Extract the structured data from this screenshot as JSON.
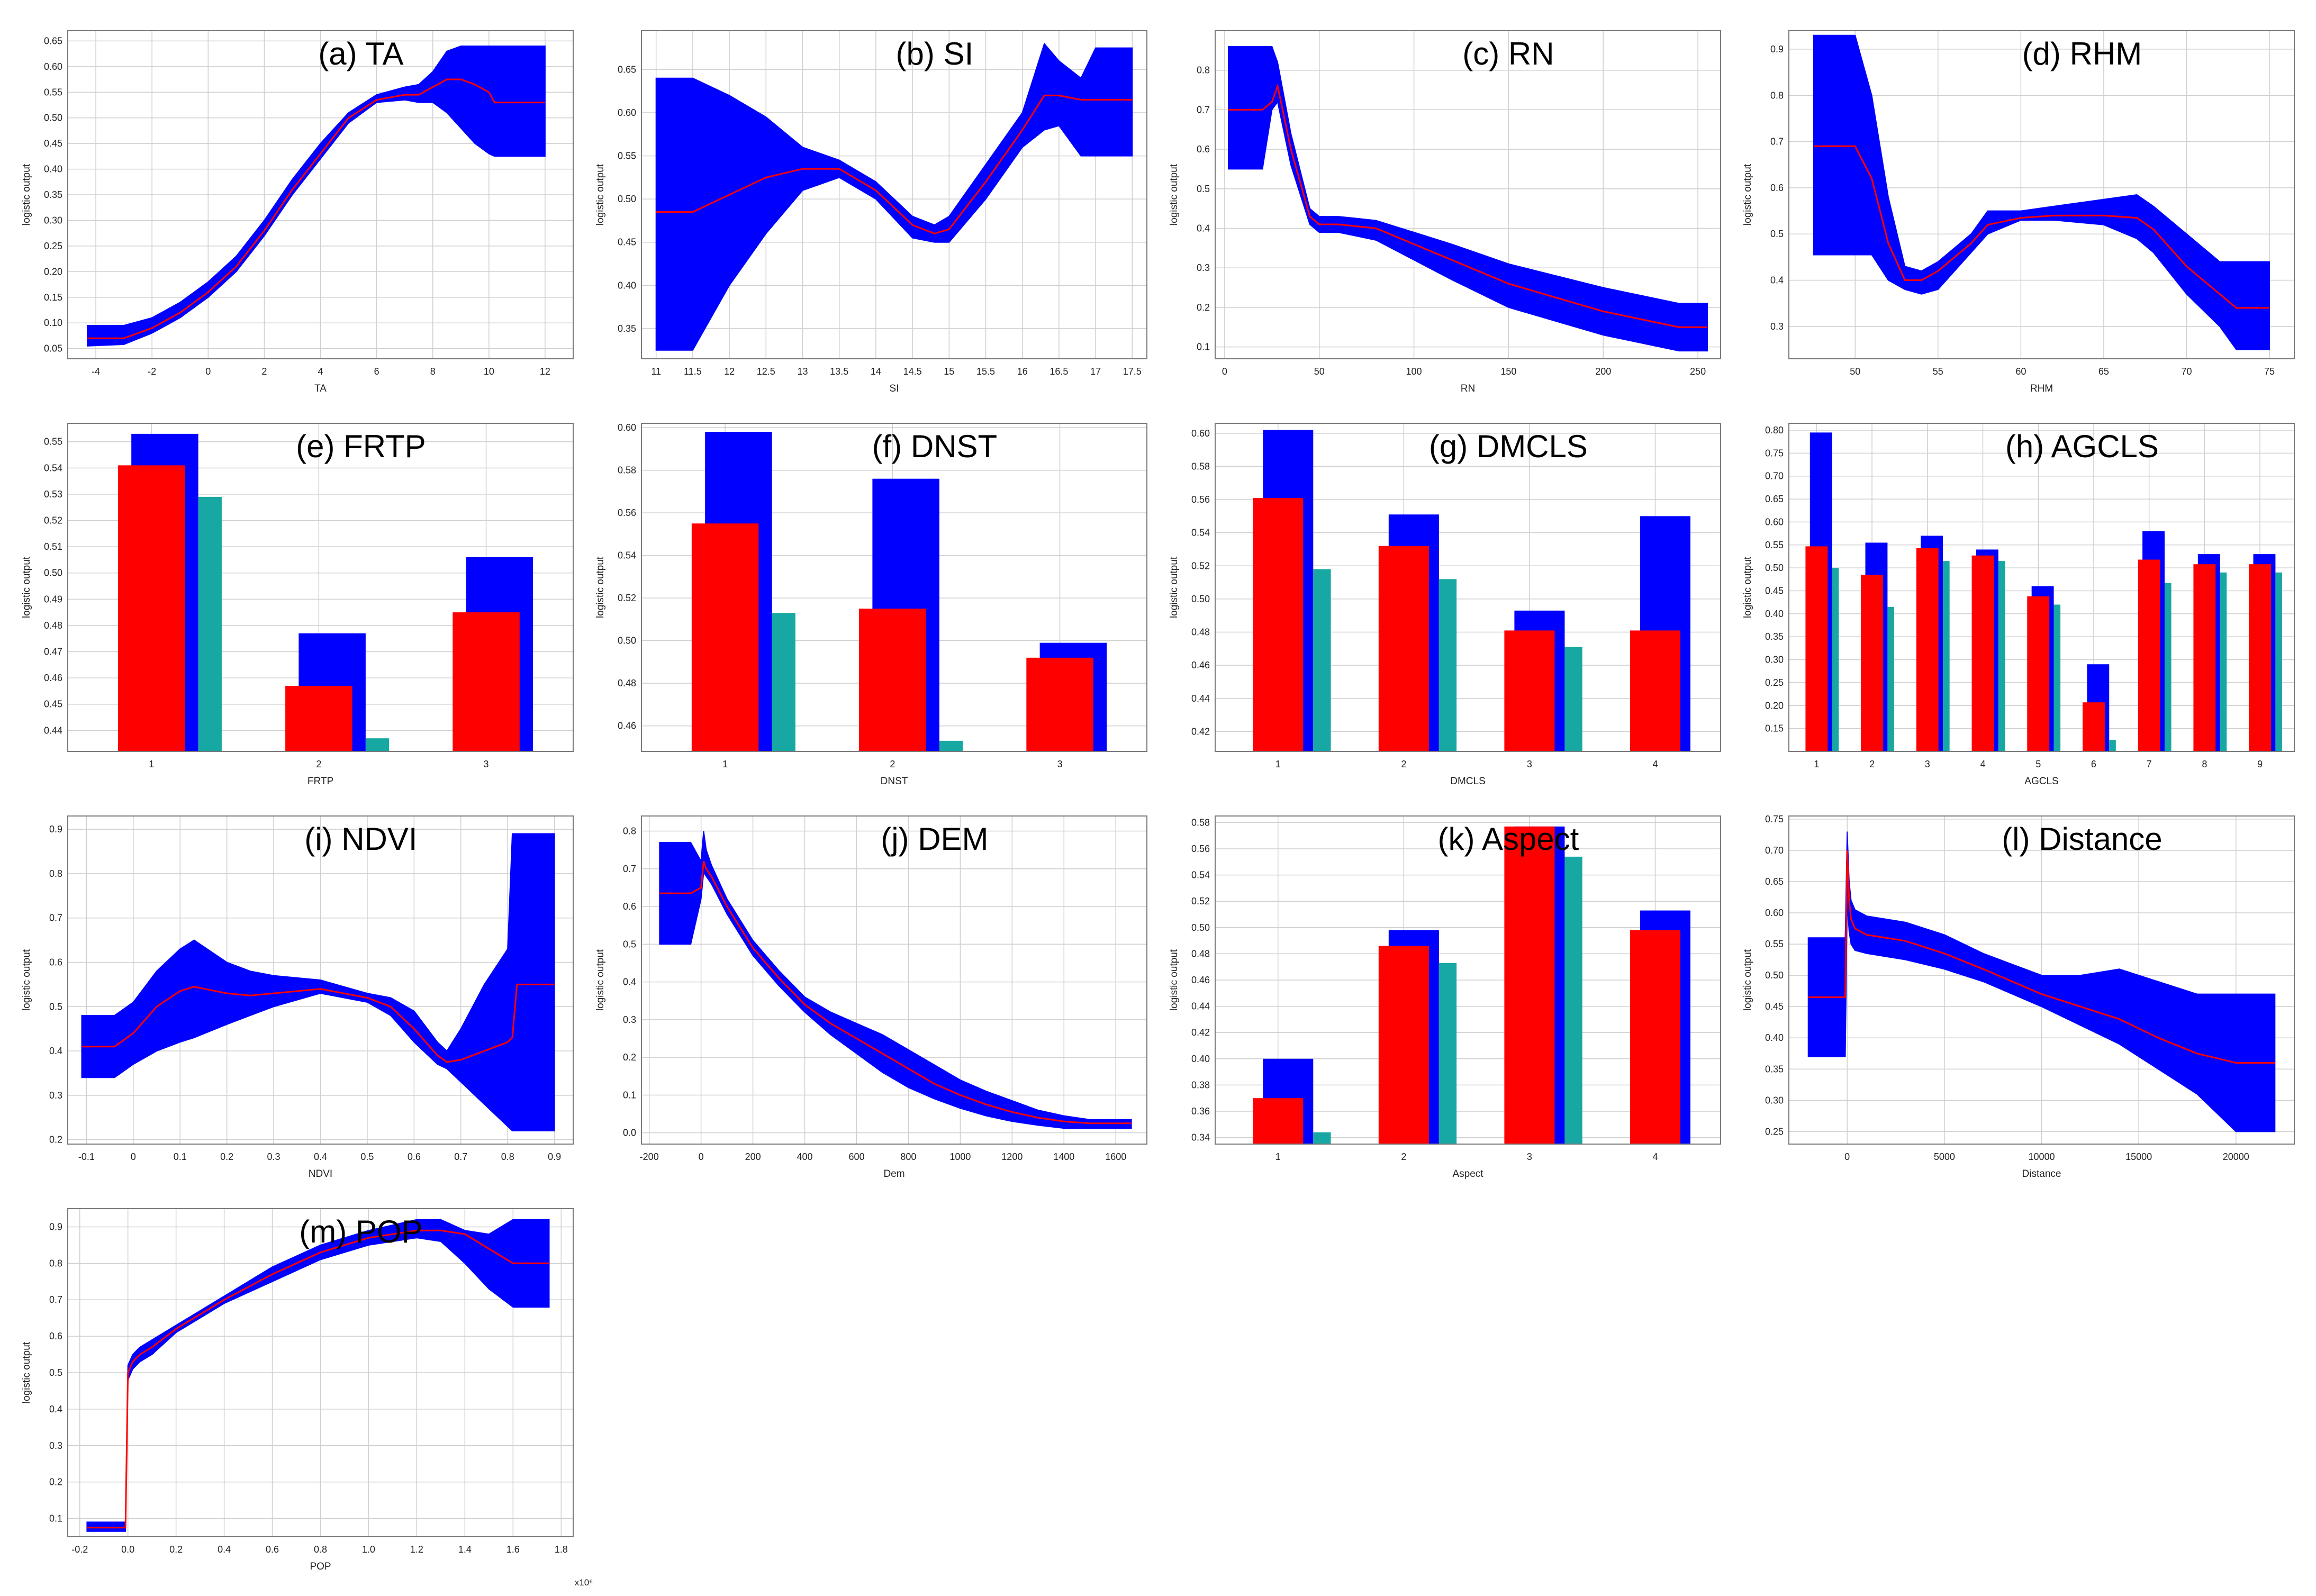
{
  "colors": {
    "ci": "#0000ff",
    "mean": "#ff0000",
    "teal": "#17a8a4",
    "grid": "#cfcfcf",
    "frame": "#7a7a7a"
  },
  "chart_data": [
    {
      "id": "a",
      "type": "line",
      "title": "(a) TA",
      "xlabel": "TA",
      "ylabel": "logistic output",
      "xlim": [
        -5,
        13
      ],
      "ylim": [
        0.03,
        0.67
      ],
      "xticks": [
        -4,
        -2,
        0,
        2,
        4,
        6,
        8,
        10,
        12
      ],
      "yticks": [
        0.05,
        0.1,
        0.15,
        0.2,
        0.25,
        0.3,
        0.35,
        0.4,
        0.45,
        0.5,
        0.55,
        0.6,
        0.65
      ],
      "x": [
        -4.3,
        -3,
        -2,
        -1,
        0,
        1,
        2,
        3,
        4,
        5,
        6,
        7,
        7.5,
        8,
        8.5,
        9,
        9.5,
        10,
        10.2,
        11,
        12
      ],
      "mean": [
        0.07,
        0.07,
        0.09,
        0.12,
        0.16,
        0.21,
        0.28,
        0.36,
        0.43,
        0.5,
        0.535,
        0.545,
        0.545,
        0.56,
        0.575,
        0.575,
        0.565,
        0.55,
        0.53,
        0.53,
        0.53
      ],
      "lower": [
        0.055,
        0.058,
        0.08,
        0.11,
        0.15,
        0.2,
        0.27,
        0.35,
        0.42,
        0.49,
        0.53,
        0.535,
        0.53,
        0.53,
        0.51,
        0.48,
        0.45,
        0.43,
        0.425,
        0.425,
        0.425
      ],
      "upper": [
        0.095,
        0.095,
        0.11,
        0.14,
        0.18,
        0.23,
        0.3,
        0.38,
        0.45,
        0.51,
        0.545,
        0.56,
        0.565,
        0.59,
        0.63,
        0.64,
        0.64,
        0.64,
        0.64,
        0.64,
        0.64
      ]
    },
    {
      "id": "b",
      "type": "line",
      "title": "(b) SI",
      "xlabel": "SI",
      "ylabel": "logistic output",
      "xlim": [
        10.8,
        17.7
      ],
      "ylim": [
        0.315,
        0.695
      ],
      "xticks": [
        11.0,
        11.5,
        12.0,
        12.5,
        13.0,
        13.5,
        14.0,
        14.5,
        15.0,
        15.5,
        16.0,
        16.5,
        17.0,
        17.5
      ],
      "yticks": [
        0.35,
        0.4,
        0.45,
        0.5,
        0.55,
        0.6,
        0.65
      ],
      "x": [
        11.0,
        11.5,
        12.0,
        12.5,
        13.0,
        13.5,
        14.0,
        14.5,
        14.8,
        15.0,
        15.5,
        16.0,
        16.3,
        16.5,
        16.8,
        17.0,
        17.5
      ],
      "mean": [
        0.485,
        0.485,
        0.505,
        0.525,
        0.535,
        0.535,
        0.51,
        0.47,
        0.46,
        0.465,
        0.52,
        0.58,
        0.62,
        0.62,
        0.615,
        0.615,
        0.615
      ],
      "lower": [
        0.325,
        0.325,
        0.4,
        0.46,
        0.51,
        0.525,
        0.5,
        0.455,
        0.45,
        0.45,
        0.5,
        0.56,
        0.58,
        0.585,
        0.55,
        0.55,
        0.55
      ],
      "upper": [
        0.64,
        0.64,
        0.62,
        0.595,
        0.56,
        0.545,
        0.52,
        0.48,
        0.47,
        0.48,
        0.54,
        0.6,
        0.68,
        0.66,
        0.64,
        0.675,
        0.675
      ]
    },
    {
      "id": "c",
      "type": "line",
      "title": "(c) RN",
      "xlabel": "RN",
      "ylabel": "logistic output",
      "xlim": [
        -5,
        262
      ],
      "ylim": [
        0.07,
        0.9
      ],
      "xticks": [
        0,
        50,
        100,
        150,
        200,
        250
      ],
      "yticks": [
        0.1,
        0.2,
        0.3,
        0.4,
        0.5,
        0.6,
        0.7,
        0.8
      ],
      "x": [
        2,
        10,
        20,
        25,
        28,
        35,
        45,
        50,
        60,
        70,
        80,
        100,
        120,
        150,
        200,
        240,
        255
      ],
      "mean": [
        0.7,
        0.7,
        0.7,
        0.72,
        0.76,
        0.6,
        0.43,
        0.41,
        0.41,
        0.405,
        0.4,
        0.36,
        0.32,
        0.26,
        0.19,
        0.15,
        0.15
      ],
      "lower": [
        0.55,
        0.55,
        0.55,
        0.7,
        0.72,
        0.56,
        0.41,
        0.39,
        0.39,
        0.38,
        0.37,
        0.32,
        0.27,
        0.2,
        0.13,
        0.09,
        0.09
      ],
      "upper": [
        0.86,
        0.86,
        0.86,
        0.86,
        0.82,
        0.64,
        0.45,
        0.43,
        0.43,
        0.425,
        0.42,
        0.39,
        0.36,
        0.31,
        0.25,
        0.21,
        0.21
      ]
    },
    {
      "id": "d",
      "type": "line",
      "title": "(d) RHM",
      "xlabel": "RHM",
      "ylabel": "logistic output",
      "xlim": [
        46,
        76.5
      ],
      "ylim": [
        0.23,
        0.94
      ],
      "xticks": [
        50,
        55,
        60,
        65,
        70,
        75
      ],
      "yticks": [
        0.3,
        0.4,
        0.5,
        0.6,
        0.7,
        0.8,
        0.9
      ],
      "x": [
        47.5,
        50,
        51,
        52,
        53,
        54,
        55,
        57,
        58,
        60,
        62,
        65,
        67,
        68,
        70,
        72,
        73,
        75
      ],
      "mean": [
        0.69,
        0.69,
        0.62,
        0.48,
        0.4,
        0.4,
        0.42,
        0.48,
        0.52,
        0.535,
        0.54,
        0.54,
        0.535,
        0.51,
        0.43,
        0.37,
        0.34,
        0.34
      ],
      "lower": [
        0.455,
        0.455,
        0.455,
        0.4,
        0.38,
        0.37,
        0.38,
        0.46,
        0.5,
        0.53,
        0.53,
        0.52,
        0.49,
        0.46,
        0.37,
        0.3,
        0.25,
        0.25
      ],
      "upper": [
        0.93,
        0.93,
        0.8,
        0.58,
        0.43,
        0.42,
        0.44,
        0.5,
        0.55,
        0.55,
        0.56,
        0.575,
        0.585,
        0.56,
        0.5,
        0.44,
        0.44,
        0.44
      ]
    },
    {
      "id": "e",
      "type": "bar",
      "title": "(e) FRTP",
      "xlabel": "FRTP",
      "ylabel": "logistic output",
      "categories": [
        "1",
        "2",
        "3"
      ],
      "xlim": [
        0.5,
        3.52
      ],
      "ylim": [
        0.432,
        0.557
      ],
      "yticks": [
        0.44,
        0.45,
        0.46,
        0.47,
        0.48,
        0.49,
        0.5,
        0.51,
        0.52,
        0.53,
        0.54,
        0.55
      ],
      "upper": [
        0.553,
        0.477,
        0.506
      ],
      "mean": [
        0.541,
        0.457,
        0.485
      ],
      "teal": [
        0.529,
        0.437,
        null
      ]
    },
    {
      "id": "f",
      "type": "bar",
      "title": "(f) DNST",
      "xlabel": "DNST",
      "ylabel": "logistic output",
      "categories": [
        "1",
        "2",
        "3"
      ],
      "xlim": [
        0.5,
        3.52
      ],
      "ylim": [
        0.448,
        0.602
      ],
      "yticks": [
        0.46,
        0.48,
        0.5,
        0.52,
        0.54,
        0.56,
        0.58,
        0.6
      ],
      "upper": [
        0.598,
        0.576,
        0.499
      ],
      "mean": [
        0.555,
        0.515,
        0.492
      ],
      "teal": [
        0.513,
        0.453,
        null
      ]
    },
    {
      "id": "g",
      "type": "bar",
      "title": "(g) DMCLS",
      "xlabel": "DMCLS",
      "ylabel": "logistic output",
      "categories": [
        "1",
        "2",
        "3",
        "4"
      ],
      "xlim": [
        0.5,
        4.52
      ],
      "ylim": [
        0.408,
        0.606
      ],
      "yticks": [
        0.42,
        0.44,
        0.46,
        0.48,
        0.5,
        0.52,
        0.54,
        0.56,
        0.58,
        0.6
      ],
      "upper": [
        0.602,
        0.551,
        0.493,
        0.55
      ],
      "mean": [
        0.561,
        0.532,
        0.481,
        0.481
      ],
      "teal": [
        0.518,
        0.512,
        0.471,
        null
      ]
    },
    {
      "id": "h",
      "type": "bar",
      "title": "(h) AGCLS",
      "xlabel": "AGCLS",
      "ylabel": "logistic output",
      "categories": [
        "1",
        "2",
        "3",
        "4",
        "5",
        "6",
        "7",
        "8",
        "9"
      ],
      "xlim": [
        0.5,
        9.62
      ],
      "ylim": [
        0.1,
        0.815
      ],
      "yticks": [
        0.15,
        0.2,
        0.25,
        0.3,
        0.35,
        0.4,
        0.45,
        0.5,
        0.55,
        0.6,
        0.65,
        0.7,
        0.75,
        0.8
      ],
      "upper": [
        0.795,
        0.555,
        0.57,
        0.54,
        0.46,
        0.29,
        0.58,
        0.53,
        0.53
      ],
      "mean": [
        0.547,
        0.485,
        0.543,
        0.527,
        0.438,
        0.207,
        0.518,
        0.508,
        0.508
      ],
      "teal": [
        0.5,
        0.415,
        0.515,
        0.515,
        0.42,
        0.125,
        0.467,
        0.49,
        0.49
      ]
    },
    {
      "id": "i",
      "type": "line",
      "title": "(i) NDVI",
      "xlabel": "NDVI",
      "ylabel": "logistic output",
      "xlim": [
        -0.14,
        0.94
      ],
      "ylim": [
        0.19,
        0.93
      ],
      "xticks": [
        -0.1,
        0.0,
        0.1,
        0.2,
        0.3,
        0.4,
        0.5,
        0.6,
        0.7,
        0.8,
        0.9
      ],
      "yticks": [
        0.2,
        0.3,
        0.4,
        0.5,
        0.6,
        0.7,
        0.8,
        0.9
      ],
      "x": [
        -0.11,
        -0.04,
        0.0,
        0.05,
        0.1,
        0.13,
        0.2,
        0.25,
        0.3,
        0.4,
        0.5,
        0.55,
        0.6,
        0.65,
        0.67,
        0.7,
        0.75,
        0.8,
        0.81,
        0.82,
        0.9
      ],
      "mean": [
        0.41,
        0.41,
        0.44,
        0.5,
        0.535,
        0.545,
        0.53,
        0.525,
        0.53,
        0.54,
        0.52,
        0.5,
        0.45,
        0.39,
        0.375,
        0.38,
        0.4,
        0.42,
        0.43,
        0.55,
        0.55
      ],
      "lower": [
        0.34,
        0.34,
        0.37,
        0.4,
        0.42,
        0.43,
        0.46,
        0.48,
        0.5,
        0.53,
        0.51,
        0.48,
        0.42,
        0.37,
        0.36,
        0.33,
        0.28,
        0.23,
        0.22,
        0.22,
        0.22
      ],
      "upper": [
        0.48,
        0.48,
        0.51,
        0.58,
        0.63,
        0.65,
        0.6,
        0.58,
        0.57,
        0.56,
        0.53,
        0.52,
        0.49,
        0.42,
        0.4,
        0.45,
        0.55,
        0.63,
        0.89,
        0.89,
        0.89
      ]
    },
    {
      "id": "j",
      "type": "line",
      "title": "(j) DEM",
      "xlabel": "Dem",
      "ylabel": "logistic output",
      "xlim": [
        -230,
        1720
      ],
      "ylim": [
        -0.03,
        0.84
      ],
      "xticks": [
        -200,
        0,
        200,
        400,
        600,
        800,
        1000,
        1200,
        1400,
        1600
      ],
      "yticks": [
        0.0,
        0.1,
        0.2,
        0.3,
        0.4,
        0.5,
        0.6,
        0.7,
        0.8
      ],
      "x": [
        -160,
        -120,
        -80,
        -40,
        0,
        10,
        20,
        40,
        100,
        200,
        300,
        400,
        500,
        600,
        700,
        800,
        900,
        1000,
        1100,
        1200,
        1300,
        1400,
        1500,
        1600,
        1660
      ],
      "mean": [
        0.635,
        0.635,
        0.635,
        0.635,
        0.65,
        0.72,
        0.7,
        0.68,
        0.6,
        0.49,
        0.41,
        0.34,
        0.29,
        0.25,
        0.21,
        0.17,
        0.13,
        0.1,
        0.075,
        0.055,
        0.04,
        0.03,
        0.025,
        0.025,
        0.025
      ],
      "lower": [
        0.5,
        0.5,
        0.5,
        0.5,
        0.62,
        0.69,
        0.68,
        0.66,
        0.58,
        0.47,
        0.39,
        0.32,
        0.26,
        0.21,
        0.16,
        0.12,
        0.09,
        0.065,
        0.045,
        0.03,
        0.02,
        0.012,
        0.012,
        0.012,
        0.012
      ],
      "upper": [
        0.77,
        0.77,
        0.77,
        0.77,
        0.72,
        0.8,
        0.75,
        0.71,
        0.62,
        0.51,
        0.43,
        0.36,
        0.32,
        0.29,
        0.26,
        0.22,
        0.18,
        0.14,
        0.11,
        0.085,
        0.06,
        0.045,
        0.035,
        0.035,
        0.035
      ]
    },
    {
      "id": "k",
      "type": "bar",
      "title": "(k) Aspect",
      "xlabel": "Aspect",
      "ylabel": "logistic output",
      "categories": [
        "1",
        "2",
        "3",
        "4"
      ],
      "xlim": [
        0.5,
        4.52
      ],
      "ylim": [
        0.335,
        0.585
      ],
      "yticks": [
        0.34,
        0.36,
        0.38,
        0.4,
        0.42,
        0.44,
        0.46,
        0.48,
        0.5,
        0.52,
        0.54,
        0.56,
        0.58
      ],
      "upper": [
        0.4,
        0.498,
        0.577,
        0.513
      ],
      "mean": [
        0.37,
        0.486,
        0.577,
        0.498
      ],
      "teal": [
        0.344,
        0.473,
        0.554,
        null
      ]
    },
    {
      "id": "l",
      "type": "line",
      "title": "(l) Distance",
      "xlabel": "Distance",
      "ylabel": "logistic output",
      "xlim": [
        -3000,
        23000
      ],
      "ylim": [
        0.23,
        0.755
      ],
      "xticks": [
        0,
        5000,
        10000,
        15000,
        20000
      ],
      "yticks": [
        0.25,
        0.3,
        0.35,
        0.4,
        0.45,
        0.5,
        0.55,
        0.6,
        0.65,
        0.7,
        0.75
      ],
      "x": [
        -2000,
        -100,
        0,
        100,
        200,
        400,
        1000,
        3000,
        5000,
        7000,
        10000,
        12000,
        14000,
        16000,
        18000,
        20000,
        22000
      ],
      "mean": [
        0.465,
        0.465,
        0.7,
        0.62,
        0.59,
        0.575,
        0.565,
        0.555,
        0.535,
        0.51,
        0.47,
        0.45,
        0.43,
        0.4,
        0.375,
        0.36,
        0.36
      ],
      "lower": [
        0.37,
        0.37,
        0.62,
        0.57,
        0.55,
        0.54,
        0.535,
        0.525,
        0.51,
        0.49,
        0.45,
        0.42,
        0.39,
        0.35,
        0.31,
        0.25,
        0.25
      ],
      "upper": [
        0.56,
        0.56,
        0.73,
        0.65,
        0.62,
        0.605,
        0.595,
        0.585,
        0.565,
        0.535,
        0.5,
        0.5,
        0.51,
        0.49,
        0.47,
        0.47,
        0.47
      ]
    },
    {
      "id": "m",
      "type": "line",
      "title": "(m) POP",
      "xlabel": "POP",
      "ylabel": "logistic output",
      "x_exponent": "x10⁶",
      "xlim": [
        -0.25,
        1.85
      ],
      "ylim": [
        0.05,
        0.95
      ],
      "xticks": [
        "-0.2",
        "0.0",
        "0.2",
        "0.4",
        "0.6",
        "0.8",
        "1.0",
        "1.2",
        "1.4",
        "1.6",
        "1.8"
      ],
      "yticks": [
        0.1,
        0.2,
        0.3,
        0.4,
        0.5,
        0.6,
        0.7,
        0.8,
        0.9
      ],
      "x": [
        -0.17,
        -0.01,
        0.0,
        0.02,
        0.05,
        0.1,
        0.2,
        0.4,
        0.6,
        0.8,
        1.0,
        1.2,
        1.3,
        1.4,
        1.5,
        1.6,
        1.75
      ],
      "mean": [
        0.075,
        0.075,
        0.5,
        0.53,
        0.55,
        0.57,
        0.62,
        0.7,
        0.77,
        0.83,
        0.87,
        0.89,
        0.89,
        0.88,
        0.84,
        0.8,
        0.8
      ],
      "lower": [
        0.065,
        0.065,
        0.48,
        0.51,
        0.53,
        0.55,
        0.61,
        0.69,
        0.75,
        0.81,
        0.85,
        0.87,
        0.86,
        0.8,
        0.73,
        0.68,
        0.68
      ],
      "upper": [
        0.09,
        0.09,
        0.52,
        0.55,
        0.57,
        0.59,
        0.63,
        0.71,
        0.79,
        0.85,
        0.89,
        0.92,
        0.92,
        0.89,
        0.88,
        0.92,
        0.92
      ]
    }
  ]
}
